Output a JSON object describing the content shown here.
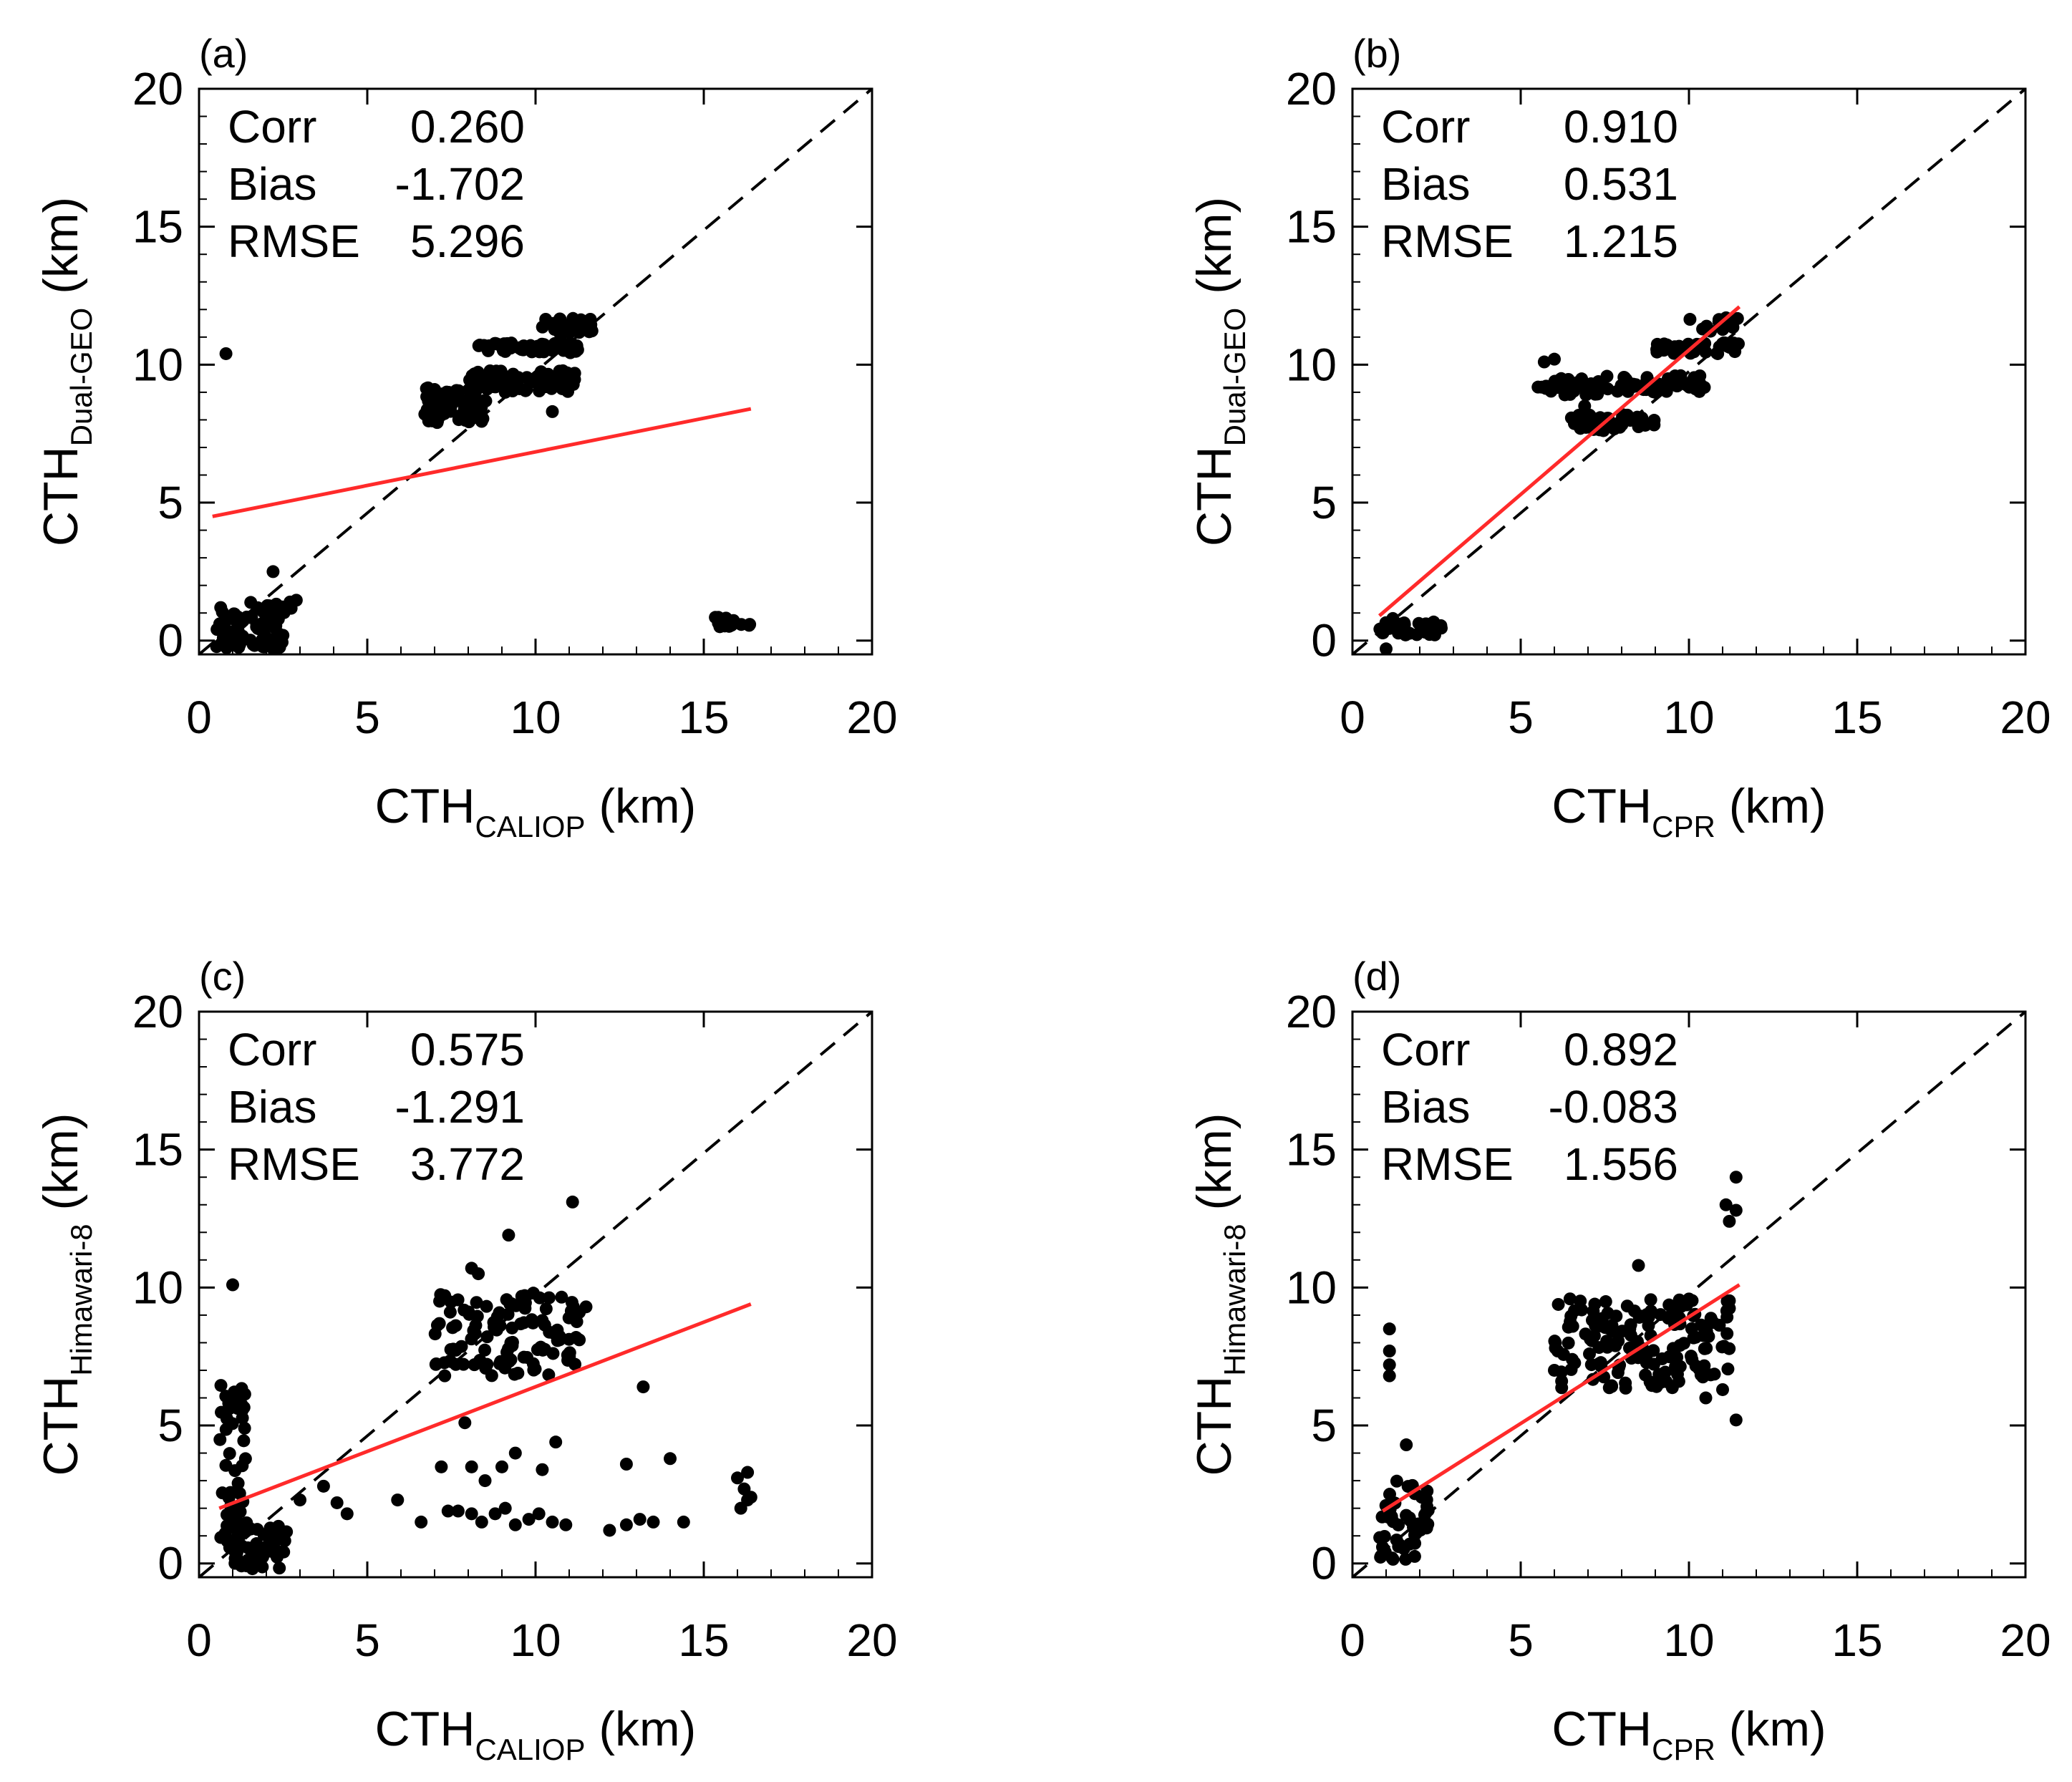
{
  "chart_data": [
    {
      "type": "scatter",
      "panel_label": "(a)",
      "xlabel": {
        "main": "CTH",
        "sub": "CALIOP",
        "unit": " (km)"
      },
      "ylabel": {
        "main": "CTH",
        "sub": "Dual-GEO",
        "unit": " (km)"
      },
      "xlim": [
        0,
        20
      ],
      "ylim": [
        -0.5,
        20
      ],
      "xticks": [
        "0",
        "5",
        "10",
        "15",
        "20"
      ],
      "yticks": [
        "0",
        "5",
        "10",
        "15",
        "20"
      ],
      "stats": [
        {
          "name": "Corr",
          "value": "0.260"
        },
        {
          "name": "Bias",
          "value": "-1.702"
        },
        {
          "name": "RMSE",
          "value": "5.296"
        }
      ],
      "reference_line": {
        "style": "dashed",
        "from": [
          0,
          -0.5
        ],
        "to": [
          20,
          20
        ],
        "color": "#000000"
      },
      "fit_line": {
        "from": [
          0.4,
          4.5
        ],
        "to": [
          16.4,
          8.4
        ],
        "color": "#ff2a2a"
      },
      "clusters": [
        {
          "x": [
            0.5,
            2.5
          ],
          "y": [
            -0.3,
            1.3
          ],
          "n": 85
        },
        {
          "x": [
            1.5,
            2.9
          ],
          "y": [
            1.0,
            1.5
          ],
          "n": 12
        },
        {
          "x": [
            6.7,
            8.6
          ],
          "y": [
            7.9,
            9.2
          ],
          "n": 65
        },
        {
          "x": [
            8.0,
            11.2
          ],
          "y": [
            9.0,
            9.8
          ],
          "n": 80
        },
        {
          "x": [
            8.3,
            11.3
          ],
          "y": [
            10.4,
            10.8
          ],
          "n": 55
        },
        {
          "x": [
            10.2,
            11.7
          ],
          "y": [
            11.1,
            11.7
          ],
          "n": 30
        },
        {
          "x": [
            15.2,
            16.4
          ],
          "y": [
            0.5,
            0.9
          ],
          "n": 18
        }
      ],
      "points": [
        [
          0.8,
          10.4
        ],
        [
          2.2,
          2.5
        ],
        [
          10.5,
          8.3
        ],
        [
          9.1,
          9.0
        ],
        [
          7.0,
          9.1
        ],
        [
          11.5,
          11.3
        ]
      ]
    },
    {
      "type": "scatter",
      "panel_label": "(b)",
      "xlabel": {
        "main": "CTH",
        "sub": "CPR",
        "unit": " (km)"
      },
      "ylabel": {
        "main": "CTH",
        "sub": "Dual-GEO",
        "unit": " (km)"
      },
      "xlim": [
        0,
        20
      ],
      "ylim": [
        -0.5,
        20
      ],
      "xticks": [
        "0",
        "5",
        "10",
        "15",
        "20"
      ],
      "yticks": [
        "0",
        "5",
        "10",
        "15",
        "20"
      ],
      "stats": [
        {
          "name": "Corr",
          "value": "0.910"
        },
        {
          "name": "Bias",
          "value": "0.531"
        },
        {
          "name": "RMSE",
          "value": "1.215"
        }
      ],
      "reference_line": {
        "style": "dashed",
        "from": [
          0,
          -0.5
        ],
        "to": [
          20,
          20
        ],
        "color": "#000000"
      },
      "fit_line": {
        "from": [
          0.8,
          0.9
        ],
        "to": [
          11.5,
          12.1
        ],
        "color": "#ff2a2a"
      },
      "clusters": [
        {
          "x": [
            0.8,
            2.8
          ],
          "y": [
            0.2,
            0.7
          ],
          "n": 35
        },
        {
          "x": [
            5.5,
            7.5
          ],
          "y": [
            8.9,
            9.5
          ],
          "n": 45
        },
        {
          "x": [
            6.5,
            9.0
          ],
          "y": [
            7.6,
            8.2
          ],
          "n": 45
        },
        {
          "x": [
            7.5,
            10.5
          ],
          "y": [
            9.0,
            9.6
          ],
          "n": 55
        },
        {
          "x": [
            9.0,
            11.5
          ],
          "y": [
            10.4,
            10.8
          ],
          "n": 40
        },
        {
          "x": [
            10.0,
            11.6
          ],
          "y": [
            11.2,
            11.7
          ],
          "n": 20
        }
      ],
      "points": [
        [
          1.0,
          -0.3
        ],
        [
          5.7,
          10.1
        ],
        [
          6.0,
          10.2
        ],
        [
          9.3,
          10.6
        ],
        [
          1.2,
          0.8
        ],
        [
          6.9,
          8.5
        ]
      ]
    },
    {
      "type": "scatter",
      "panel_label": "(c)",
      "xlabel": {
        "main": "CTH",
        "sub": "CALIOP",
        "unit": " (km)"
      },
      "ylabel": {
        "main": "CTH",
        "sub": "Himawari-8",
        "unit": " (km)"
      },
      "xlim": [
        0,
        20
      ],
      "ylim": [
        -0.5,
        20
      ],
      "xticks": [
        "0",
        "5",
        "10",
        "15",
        "20"
      ],
      "yticks": [
        "0",
        "5",
        "10",
        "15",
        "20"
      ],
      "stats": [
        {
          "name": "Corr",
          "value": "0.575"
        },
        {
          "name": "Bias",
          "value": "-1.291"
        },
        {
          "name": "RMSE",
          "value": "3.772"
        }
      ],
      "reference_line": {
        "style": "dashed",
        "from": [
          0,
          -0.5
        ],
        "to": [
          20,
          20
        ],
        "color": "#000000"
      },
      "fit_line": {
        "from": [
          0.6,
          2.0
        ],
        "to": [
          16.4,
          9.4
        ],
        "color": "#ff2a2a"
      },
      "clusters": [
        {
          "x": [
            0.6,
            1.4
          ],
          "y": [
            0.5,
            6.5
          ],
          "n": 45
        },
        {
          "x": [
            1.0,
            2.6
          ],
          "y": [
            -0.2,
            1.5
          ],
          "n": 55
        },
        {
          "x": [
            7.0,
            11.3
          ],
          "y": [
            6.8,
            9.8
          ],
          "n": 110
        }
      ],
      "points": [
        [
          1.0,
          10.1
        ],
        [
          3.0,
          2.3
        ],
        [
          3.7,
          2.8
        ],
        [
          4.1,
          2.2
        ],
        [
          4.4,
          1.8
        ],
        [
          5.9,
          2.3
        ],
        [
          6.6,
          1.5
        ],
        [
          7.4,
          1.9
        ],
        [
          7.7,
          1.9
        ],
        [
          8.1,
          1.8
        ],
        [
          8.4,
          1.5
        ],
        [
          8.8,
          1.8
        ],
        [
          9.1,
          2.0
        ],
        [
          9.4,
          1.4
        ],
        [
          9.8,
          1.6
        ],
        [
          10.1,
          1.8
        ],
        [
          10.5,
          1.5
        ],
        [
          10.9,
          1.4
        ],
        [
          12.2,
          1.2
        ],
        [
          12.7,
          1.4
        ],
        [
          13.1,
          1.6
        ],
        [
          13.5,
          1.5
        ],
        [
          14.4,
          1.5
        ],
        [
          7.2,
          3.5
        ],
        [
          8.1,
          3.5
        ],
        [
          8.5,
          3.0
        ],
        [
          9.0,
          3.5
        ],
        [
          9.4,
          4.0
        ],
        [
          10.2,
          3.4
        ],
        [
          10.6,
          4.4
        ],
        [
          12.7,
          3.6
        ],
        [
          13.2,
          6.4
        ],
        [
          14.0,
          3.8
        ],
        [
          7.9,
          5.1
        ],
        [
          8.1,
          10.7
        ],
        [
          8.3,
          10.5
        ],
        [
          9.2,
          11.9
        ],
        [
          11.1,
          13.1
        ],
        [
          11.3,
          9.1
        ],
        [
          11.5,
          9.3
        ],
        [
          16.0,
          3.1
        ],
        [
          16.2,
          2.7
        ],
        [
          16.3,
          2.3
        ],
        [
          16.1,
          2.0
        ],
        [
          16.4,
          2.4
        ],
        [
          16.3,
          3.3
        ]
      ]
    },
    {
      "type": "scatter",
      "panel_label": "(d)",
      "xlabel": {
        "main": "CTH",
        "sub": "CPR",
        "unit": " (km)"
      },
      "ylabel": {
        "main": "CTH",
        "sub": "Himawari-8",
        "unit": " (km)"
      },
      "xlim": [
        0,
        20
      ],
      "ylim": [
        -0.5,
        20
      ],
      "xticks": [
        "0",
        "5",
        "10",
        "15",
        "20"
      ],
      "yticks": [
        "0",
        "5",
        "10",
        "15",
        "20"
      ],
      "stats": [
        {
          "name": "Corr",
          "value": "0.892"
        },
        {
          "name": "Bias",
          "value": "-0.083"
        },
        {
          "name": "RMSE",
          "value": "1.556"
        }
      ],
      "reference_line": {
        "style": "dashed",
        "from": [
          0,
          -0.5
        ],
        "to": [
          20,
          20
        ],
        "color": "#000000"
      },
      "fit_line": {
        "from": [
          0.9,
          1.9
        ],
        "to": [
          11.5,
          10.1
        ],
        "color": "#ff2a2a"
      },
      "clusters": [
        {
          "x": [
            0.8,
            2.3
          ],
          "y": [
            0.0,
            3.0
          ],
          "n": 50
        },
        {
          "x": [
            6.0,
            11.3
          ],
          "y": [
            6.3,
            9.6
          ],
          "n": 150
        }
      ],
      "points": [
        [
          1.1,
          8.5
        ],
        [
          1.1,
          7.7
        ],
        [
          1.1,
          7.2
        ],
        [
          1.1,
          6.8
        ],
        [
          1.6,
          4.3
        ],
        [
          8.5,
          10.8
        ],
        [
          11.1,
          13.0
        ],
        [
          11.4,
          12.8
        ],
        [
          11.4,
          14.0
        ],
        [
          11.2,
          12.4
        ],
        [
          11.4,
          5.2
        ],
        [
          11.0,
          6.3
        ],
        [
          10.5,
          6.0
        ],
        [
          6.0,
          7.0
        ],
        [
          6.1,
          7.7
        ],
        [
          9.7,
          6.6
        ]
      ]
    }
  ]
}
